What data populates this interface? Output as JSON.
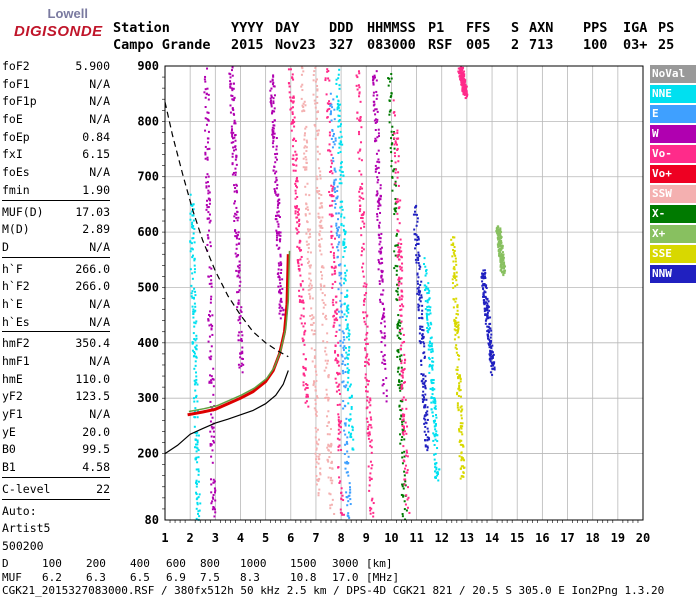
{
  "logo": {
    "line1": "Lowell",
    "line2": "DIGISONDE"
  },
  "header": {
    "labels": [
      "Station",
      "YYYY",
      "DAY",
      "DDD",
      "HHMMSS",
      "P1",
      "FFS",
      "S",
      "AXN",
      "PPS",
      "IGA",
      "PS"
    ],
    "values": [
      "Campo Grande",
      "2015",
      "Nov23",
      "327",
      "083000",
      "RSF",
      "005",
      "2",
      "713",
      "100",
      "03+",
      "25"
    ]
  },
  "params": {
    "group1": [
      [
        "foF2",
        "5.900"
      ],
      [
        "foF1",
        "N/A"
      ],
      [
        "foF1p",
        "N/A"
      ],
      [
        "foE",
        "N/A"
      ],
      [
        "foEp",
        "0.84"
      ],
      [
        "fxI",
        "6.15"
      ],
      [
        "foEs",
        "N/A"
      ],
      [
        "fmin",
        "1.90"
      ]
    ],
    "group2": [
      [
        "MUF(D)",
        "17.03"
      ],
      [
        "M(D)",
        "2.89"
      ],
      [
        "D",
        "N/A"
      ]
    ],
    "group3": [
      [
        "h`F",
        "266.0"
      ],
      [
        "h`F2",
        "266.0"
      ],
      [
        "h`E",
        "N/A"
      ],
      [
        "h`Es",
        "N/A"
      ]
    ],
    "group4": [
      [
        "hmF2",
        "350.4"
      ],
      [
        "hmF1",
        "N/A"
      ],
      [
        "hmE",
        "110.0"
      ],
      [
        "yF2",
        "123.5"
      ],
      [
        "yF1",
        "N/A"
      ],
      [
        "yE",
        "20.0"
      ],
      [
        "B0",
        "99.5"
      ],
      [
        "B1",
        "4.58"
      ]
    ],
    "group5": [
      [
        "C-level",
        "22"
      ]
    ],
    "autoscaling": [
      "Auto:",
      "Artist5",
      "500200"
    ]
  },
  "legend": [
    {
      "label": "NoVal",
      "color": "#999999"
    },
    {
      "label": "NNE",
      "color": "#00e0f0"
    },
    {
      "label": "E",
      "color": "#3fa0ff"
    },
    {
      "label": "W",
      "color": "#b000b0"
    },
    {
      "label": "Vo-",
      "color": "#ff2b8a"
    },
    {
      "label": "Vo+",
      "color": "#ee0022"
    },
    {
      "label": "SSW",
      "color": "#f4b0b0"
    },
    {
      "label": "X-",
      "color": "#007a00"
    },
    {
      "label": "X+",
      "color": "#88c060"
    },
    {
      "label": "SSE",
      "color": "#d8d800"
    },
    {
      "label": "NNW",
      "color": "#2020c0"
    }
  ],
  "chart_data": {
    "type": "scatter",
    "xlim": [
      1,
      20
    ],
    "ylim": [
      80,
      900
    ],
    "xticks": [
      1,
      2,
      3,
      4,
      5,
      6,
      7,
      8,
      9,
      10,
      11,
      12,
      13,
      14,
      15,
      16,
      17,
      18,
      19,
      20
    ],
    "yticks": [
      80,
      200,
      300,
      400,
      500,
      600,
      700,
      800,
      900
    ],
    "grid": true,
    "profile_line": [
      [
        1.9,
        270
      ],
      [
        2.5,
        275
      ],
      [
        3,
        280
      ],
      [
        3.5,
        290
      ],
      [
        4,
        300
      ],
      [
        4.5,
        312
      ],
      [
        5,
        330
      ],
      [
        5.3,
        350
      ],
      [
        5.55,
        380
      ],
      [
        5.75,
        420
      ],
      [
        5.85,
        470
      ],
      [
        5.9,
        560
      ]
    ],
    "true_height_line": [
      [
        1,
        200
      ],
      [
        1.5,
        215
      ],
      [
        2,
        235
      ],
      [
        2.5,
        245
      ],
      [
        3,
        255
      ],
      [
        3.5,
        262
      ],
      [
        4,
        270
      ],
      [
        4.5,
        278
      ],
      [
        5,
        290
      ],
      [
        5.4,
        305
      ],
      [
        5.7,
        325
      ],
      [
        5.9,
        350
      ]
    ],
    "scale_height_line": [
      [
        1,
        835
      ],
      [
        1.3,
        775
      ],
      [
        1.7,
        705
      ],
      [
        2.1,
        640
      ],
      [
        2.5,
        585
      ],
      [
        3,
        530
      ],
      [
        3.5,
        485
      ],
      [
        4,
        450
      ],
      [
        4.5,
        420
      ],
      [
        5,
        400
      ],
      [
        5.5,
        385
      ],
      [
        5.9,
        375
      ]
    ],
    "spread_traces": [
      {
        "freq": [
          5.95,
          6.6
        ],
        "h": [
          900,
          280
        ],
        "color": "#ff2b8a"
      },
      {
        "freq": [
          6.4,
          7.1
        ],
        "h": [
          900,
          120
        ],
        "color": "#f4b0b0"
      },
      {
        "freq": [
          6.9,
          7.6
        ],
        "h": [
          900,
          90
        ],
        "color": "#f4b0b0"
      },
      {
        "freq": [
          7.4,
          8.0
        ],
        "h": [
          900,
          80
        ],
        "color": "#ff2b8a"
      },
      {
        "freq": [
          7.6,
          8.3
        ],
        "h": [
          850,
          80
        ],
        "color": "#3fa0ff"
      },
      {
        "freq": [
          7.8,
          8.4
        ],
        "h": [
          900,
          200
        ],
        "color": "#00e0f0"
      },
      {
        "freq": [
          8.6,
          9.2
        ],
        "h": [
          900,
          80
        ],
        "color": "#ff2b8a"
      },
      {
        "freq": [
          9.9,
          10.5
        ],
        "h": [
          900,
          80
        ],
        "color": "#007a00"
      },
      {
        "freq": [
          10.1,
          10.6
        ],
        "h": [
          850,
          90
        ],
        "color": "#ff2b8a"
      },
      {
        "freq": [
          12.4,
          12.8
        ],
        "h": [
          600,
          150
        ],
        "color": "#d8d800"
      },
      {
        "freq": [
          12.7,
          12.9
        ],
        "h": [
          900,
          850
        ],
        "color": "#ff2b8a"
      },
      {
        "freq": [
          14.2,
          14.4
        ],
        "h": [
          610,
          530
        ],
        "color": "#88c060"
      },
      {
        "freq": [
          13.6,
          14.0
        ],
        "h": [
          530,
          350
        ],
        "color": "#2020c0"
      },
      {
        "freq": [
          2.0,
          2.3
        ],
        "h": [
          680,
          80
        ],
        "color": "#00e0f0"
      },
      {
        "freq": [
          2.6,
          2.9
        ],
        "h": [
          900,
          80
        ],
        "color": "#b000b0"
      },
      {
        "freq": [
          3.6,
          4.0
        ],
        "h": [
          900,
          350
        ],
        "color": "#b000b0"
      },
      {
        "freq": [
          5.2,
          5.6
        ],
        "h": [
          900,
          450
        ],
        "color": "#b000b0"
      },
      {
        "freq": [
          9.3,
          9.7
        ],
        "h": [
          900,
          300
        ],
        "color": "#b000b0"
      },
      {
        "freq": [
          10.9,
          11.4
        ],
        "h": [
          650,
          200
        ],
        "color": "#2020c0"
      },
      {
        "freq": [
          11.3,
          11.8
        ],
        "h": [
          560,
          150
        ],
        "color": "#00e0f0"
      }
    ]
  },
  "bottom": {
    "d_label": "D",
    "d_values": [
      "100",
      "200",
      "400",
      "600",
      "800",
      "1000",
      "1500",
      "3000",
      "[km]"
    ],
    "muf_label": "MUF",
    "muf_values": [
      "6.2",
      "6.3",
      "6.5",
      "6.9",
      "7.5",
      "8.3",
      "10.8",
      "17.0",
      "[MHz]"
    ],
    "footer": "CGK21_2015327083000.RSF / 380fx512h 50 kHz 2.5 km / DPS-4D CGK21 821 / 20.5 S 305.0 E Ion2Png 1.3.20"
  }
}
